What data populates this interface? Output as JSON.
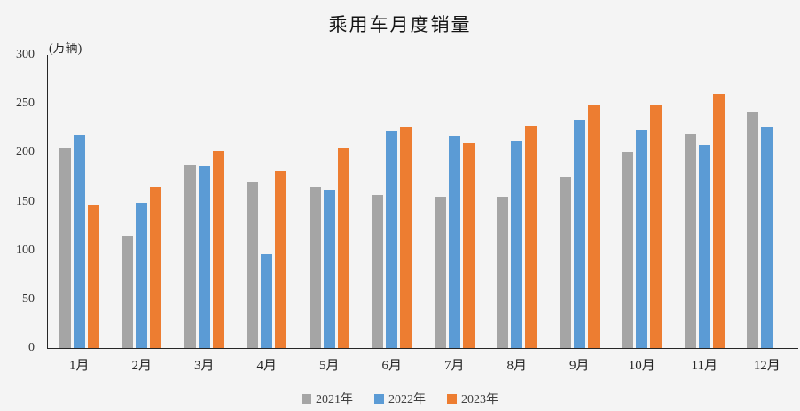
{
  "page": {
    "background_color": "#f4f4f4"
  },
  "chart_data": {
    "type": "bar",
    "title": "乘用车月度销量",
    "unit_label": "(万辆)",
    "xlabel": "",
    "ylabel": "万辆",
    "categories": [
      "1月",
      "2月",
      "3月",
      "4月",
      "5月",
      "6月",
      "7月",
      "8月",
      "9月",
      "10月",
      "11月",
      "12月"
    ],
    "series": [
      {
        "name": "2021年",
        "color": "#a5a5a5",
        "values": [
          204.5,
          115.5,
          187.4,
          170.4,
          164.6,
          156.9,
          155.1,
          155.2,
          175.1,
          200.7,
          219.2,
          242.2
        ]
      },
      {
        "name": "2022年",
        "color": "#5b9bd5",
        "values": [
          218.6,
          148.7,
          186.4,
          96.5,
          162.3,
          222.2,
          217.4,
          212.5,
          233.2,
          223.1,
          207.5,
          226.3
        ]
      },
      {
        "name": "2023年",
        "color": "#ed7d31",
        "values": [
          146.9,
          165.3,
          201.7,
          181.1,
          205.1,
          226.8,
          210.0,
          227.5,
          248.9,
          249.1,
          260.4,
          null
        ]
      }
    ],
    "ylim": [
      0,
      300
    ],
    "yticks": [
      0,
      50,
      100,
      150,
      200,
      250,
      300
    ],
    "grid": false,
    "legend_position": "bottom",
    "axis_color": "#262626"
  }
}
